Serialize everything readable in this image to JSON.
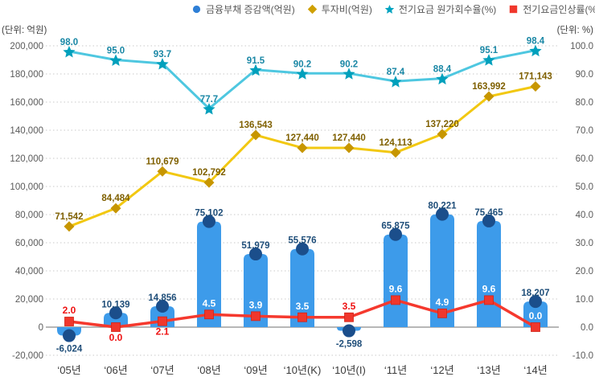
{
  "axes": {
    "left_unit": "(단위: 억원)",
    "right_unit": "(단위: %)",
    "left_ticks": [
      "200,000",
      "180,000",
      "160,000",
      "140,000",
      "120,000",
      "100,000",
      "80,000",
      "60,000",
      "40,000",
      "20,000",
      "0",
      "-20,000"
    ],
    "right_ticks": [
      "100.0",
      "90.0",
      "80.0",
      "70.0",
      "60.0",
      "50.0",
      "40.0",
      "30.0",
      "20.0",
      "10.0",
      "0.0",
      "-10.0"
    ],
    "x_ticks": [
      "‘05년",
      "‘06년",
      "‘07년",
      "‘08년",
      "‘09년",
      "‘10년(K)",
      "‘10년(I)",
      "‘11년",
      "‘12년",
      "‘13년",
      "‘14년"
    ]
  },
  "legend": {
    "items": [
      {
        "label": "금융부채 증감액(억원)",
        "marker": "circle",
        "color": "#2E7FD6"
      },
      {
        "label": "투자비(억원)",
        "marker": "diamond",
        "color": "#CFA000"
      },
      {
        "label": "전기요금 원가회수율(%)",
        "marker": "star",
        "color": "#00A3C0"
      },
      {
        "label": "전기요금인상률(%)",
        "marker": "square",
        "color": "#F0372C"
      }
    ]
  },
  "colors": {
    "grid": "#C9C9C9",
    "zero_axis": "#8C8C8C",
    "axis_tick_text": "#595959",
    "x_tick_text": "#3A3A3A"
  },
  "chart_data": {
    "type": "combo-bar-line",
    "grid": "horizontal-dotted",
    "legend_position": "top",
    "categories": [
      "‘05년",
      "‘06년",
      "‘07년",
      "‘08년",
      "‘09년",
      "‘10년(K)",
      "‘10년(I)",
      "‘11년",
      "‘12년",
      "‘13년",
      "‘14년"
    ],
    "left_axis": {
      "min": -20000,
      "max": 200000,
      "step": 20000,
      "unit": "억원"
    },
    "right_axis": {
      "min": -10,
      "max": 100,
      "step": 10,
      "unit": "%"
    },
    "series": [
      {
        "name": "금융부채 증감액(억원)",
        "type": "bar",
        "axis": "left",
        "color": "#3D9BEA",
        "marker_color": "#1B4E8B",
        "label_color": "#1F4E79",
        "values": [
          -6024,
          10139,
          14856,
          75102,
          51979,
          55576,
          -2598,
          65875,
          80221,
          75465,
          18207
        ],
        "labels": [
          "-6,024",
          "10,139",
          "14,856",
          "75,102",
          "51,979",
          "55,576",
          "-2,598",
          "65,875",
          "80,221",
          "75,465",
          "18,207"
        ]
      },
      {
        "name": "투자비(억원)",
        "type": "line",
        "marker": "diamond",
        "axis": "left",
        "color": "#F2C811",
        "marker_color": "#C79600",
        "label_color": "#7F6000",
        "values": [
          71542,
          84484,
          110679,
          102792,
          136543,
          127440,
          127440,
          124113,
          137220,
          163992,
          171143
        ],
        "labels": [
          "71,542",
          "84,484",
          "110,679",
          "102,792",
          "136,543",
          "127,440",
          "127,440",
          "124,113",
          "137,220",
          "163,992",
          "171,143"
        ]
      },
      {
        "name": "전기요금 원가회수율(%)",
        "type": "line",
        "marker": "star",
        "axis": "right",
        "color": "#4EC7E0",
        "marker_color": "#00A0BC",
        "label_color": "#1987A5",
        "values": [
          98.0,
          95.0,
          93.7,
          77.7,
          91.5,
          90.2,
          90.2,
          87.4,
          88.4,
          95.1,
          98.4
        ],
        "labels": [
          "98.0",
          "95.0",
          "93.7",
          "77.7",
          "91.5",
          "90.2",
          "90.2",
          "87.4",
          "88.4",
          "95.1",
          "98.4"
        ]
      },
      {
        "name": "전기요금인상률(%)",
        "type": "line",
        "marker": "square",
        "axis": "right",
        "color": "#F5392E",
        "marker_color": "#F0372C",
        "label_color": "#EE1111",
        "values": [
          2.0,
          0.0,
          2.1,
          4.5,
          3.9,
          3.5,
          3.5,
          9.6,
          4.9,
          9.6,
          0.0
        ],
        "labels": [
          "2.0",
          "0.0",
          "2.1",
          "4.5",
          "3.9",
          "3.5",
          "3.5",
          "9.6",
          "4.9",
          "9.6",
          "0.0"
        ],
        "label_styles": [
          "red-above",
          "red-below",
          "red-below",
          "white-above",
          "white-above",
          "white-above",
          "red-above",
          "white-above",
          "white-above",
          "white-above",
          "white-above"
        ]
      }
    ]
  }
}
